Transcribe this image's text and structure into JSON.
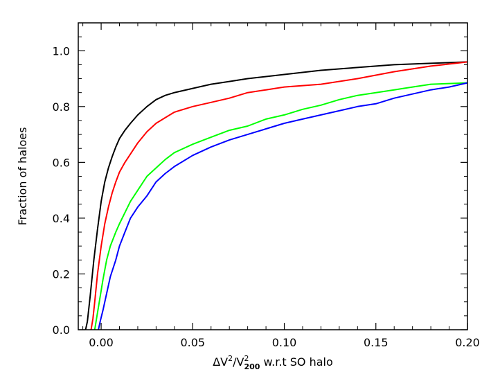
{
  "chart_data": {
    "type": "line",
    "title": "",
    "xlabel": {
      "delta": "Δ",
      "v": "V",
      "sup": "2",
      "slash": "/",
      "v2": "V",
      "sub": "200",
      "sup2": "2",
      "rest": " w.r.t SO halo"
    },
    "ylabel": "Fraction of haloes",
    "xlim": [
      -0.0125,
      0.2
    ],
    "ylim": [
      0.0,
      1.1
    ],
    "xticks": [
      0.0,
      0.05,
      0.1,
      0.15,
      0.2
    ],
    "xtick_labels": [
      "0.00",
      "0.05",
      "0.10",
      "0.15",
      "0.20"
    ],
    "yticks": [
      0.0,
      0.2,
      0.4,
      0.6,
      0.8,
      1.0
    ],
    "ytick_labels": [
      "0.0",
      "0.2",
      "0.4",
      "0.6",
      "0.8",
      "1.0"
    ],
    "grid": false,
    "legend": "none",
    "series": [
      {
        "color": "#000000",
        "points": [
          [
            -0.0085,
            0.0
          ],
          [
            -0.0075,
            0.03
          ],
          [
            -0.006,
            0.12
          ],
          [
            -0.004,
            0.25
          ],
          [
            -0.002,
            0.36
          ],
          [
            0.0,
            0.46
          ],
          [
            0.002,
            0.53
          ],
          [
            0.004,
            0.58
          ],
          [
            0.006,
            0.62
          ],
          [
            0.008,
            0.655
          ],
          [
            0.01,
            0.685
          ],
          [
            0.013,
            0.715
          ],
          [
            0.016,
            0.74
          ],
          [
            0.02,
            0.77
          ],
          [
            0.025,
            0.8
          ],
          [
            0.03,
            0.825
          ],
          [
            0.035,
            0.84
          ],
          [
            0.04,
            0.85
          ],
          [
            0.05,
            0.865
          ],
          [
            0.06,
            0.88
          ],
          [
            0.07,
            0.89
          ],
          [
            0.08,
            0.9
          ],
          [
            0.1,
            0.915
          ],
          [
            0.12,
            0.93
          ],
          [
            0.14,
            0.94
          ],
          [
            0.16,
            0.95
          ],
          [
            0.18,
            0.955
          ],
          [
            0.2,
            0.96
          ]
        ]
      },
      {
        "color": "#ff0000",
        "points": [
          [
            -0.0055,
            0.0
          ],
          [
            -0.0045,
            0.04
          ],
          [
            -0.0035,
            0.1
          ],
          [
            -0.002,
            0.2
          ],
          [
            0.0,
            0.3
          ],
          [
            0.002,
            0.38
          ],
          [
            0.004,
            0.44
          ],
          [
            0.006,
            0.49
          ],
          [
            0.008,
            0.53
          ],
          [
            0.01,
            0.565
          ],
          [
            0.013,
            0.6
          ],
          [
            0.016,
            0.63
          ],
          [
            0.02,
            0.67
          ],
          [
            0.025,
            0.71
          ],
          [
            0.03,
            0.74
          ],
          [
            0.035,
            0.76
          ],
          [
            0.04,
            0.78
          ],
          [
            0.05,
            0.8
          ],
          [
            0.06,
            0.815
          ],
          [
            0.07,
            0.83
          ],
          [
            0.08,
            0.85
          ],
          [
            0.09,
            0.86
          ],
          [
            0.1,
            0.87
          ],
          [
            0.12,
            0.88
          ],
          [
            0.14,
            0.9
          ],
          [
            0.16,
            0.925
          ],
          [
            0.18,
            0.945
          ],
          [
            0.2,
            0.96
          ]
        ]
      },
      {
        "color": "#00ff00",
        "points": [
          [
            -0.0035,
            0.0
          ],
          [
            -0.0025,
            0.04
          ],
          [
            -0.001,
            0.1
          ],
          [
            0.001,
            0.18
          ],
          [
            0.003,
            0.25
          ],
          [
            0.005,
            0.3
          ],
          [
            0.008,
            0.35
          ],
          [
            0.01,
            0.38
          ],
          [
            0.013,
            0.42
          ],
          [
            0.016,
            0.46
          ],
          [
            0.02,
            0.5
          ],
          [
            0.025,
            0.55
          ],
          [
            0.03,
            0.58
          ],
          [
            0.035,
            0.61
          ],
          [
            0.04,
            0.635
          ],
          [
            0.05,
            0.665
          ],
          [
            0.06,
            0.69
          ],
          [
            0.07,
            0.715
          ],
          [
            0.08,
            0.73
          ],
          [
            0.09,
            0.755
          ],
          [
            0.1,
            0.77
          ],
          [
            0.11,
            0.79
          ],
          [
            0.12,
            0.805
          ],
          [
            0.13,
            0.825
          ],
          [
            0.14,
            0.84
          ],
          [
            0.15,
            0.85
          ],
          [
            0.16,
            0.86
          ],
          [
            0.17,
            0.87
          ],
          [
            0.18,
            0.88
          ],
          [
            0.2,
            0.885
          ]
        ]
      },
      {
        "color": "#0000ff",
        "points": [
          [
            -0.0015,
            0.0
          ],
          [
            -0.0005,
            0.03
          ],
          [
            0.001,
            0.07
          ],
          [
            0.003,
            0.13
          ],
          [
            0.005,
            0.19
          ],
          [
            0.008,
            0.25
          ],
          [
            0.01,
            0.3
          ],
          [
            0.013,
            0.35
          ],
          [
            0.016,
            0.4
          ],
          [
            0.02,
            0.44
          ],
          [
            0.025,
            0.48
          ],
          [
            0.03,
            0.53
          ],
          [
            0.035,
            0.56
          ],
          [
            0.04,
            0.585
          ],
          [
            0.05,
            0.625
          ],
          [
            0.06,
            0.655
          ],
          [
            0.07,
            0.68
          ],
          [
            0.08,
            0.7
          ],
          [
            0.09,
            0.72
          ],
          [
            0.1,
            0.74
          ],
          [
            0.11,
            0.755
          ],
          [
            0.12,
            0.77
          ],
          [
            0.13,
            0.785
          ],
          [
            0.14,
            0.8
          ],
          [
            0.15,
            0.81
          ],
          [
            0.16,
            0.83
          ],
          [
            0.17,
            0.845
          ],
          [
            0.18,
            0.86
          ],
          [
            0.19,
            0.87
          ],
          [
            0.2,
            0.885
          ]
        ]
      }
    ]
  }
}
